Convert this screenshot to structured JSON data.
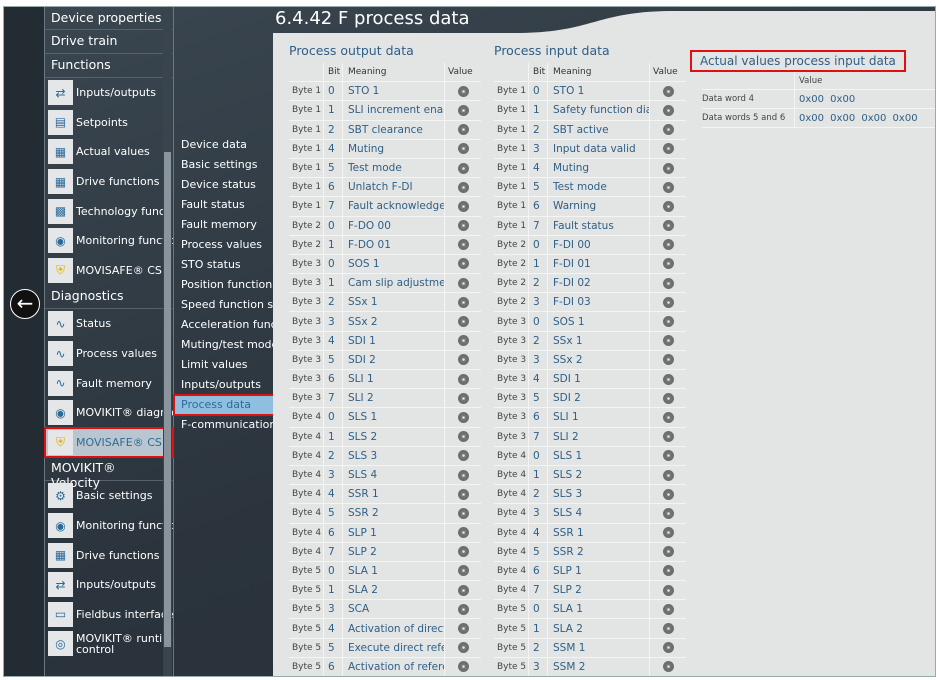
{
  "title": "6.4.42 F process data",
  "sidebar": {
    "sections": [
      {
        "label": "Device properties",
        "items": []
      },
      {
        "label": "Drive train",
        "items": []
      },
      {
        "label": "Functions",
        "items": [
          {
            "label": "Inputs/outputs",
            "icon": "io-icon"
          },
          {
            "label": "Setpoints",
            "icon": "setpoints-icon"
          },
          {
            "label": "Actual values",
            "icon": "actual-values-icon"
          },
          {
            "label": "Drive functions",
            "icon": "drive-functions-icon"
          },
          {
            "label": "Technology functi",
            "icon": "technology-icon"
          },
          {
            "label": "Monitoring functio",
            "icon": "eye-icon"
          },
          {
            "label": "MOVISAFE® CS..",
            "icon": "shield-icon"
          }
        ]
      },
      {
        "label": "Diagnostics",
        "items": [
          {
            "label": "Status",
            "icon": "pulse-icon"
          },
          {
            "label": "Process values",
            "icon": "process-values-icon"
          },
          {
            "label": "Fault memory",
            "icon": "fault-memory-icon"
          },
          {
            "label": "MOVIKIT® diagno",
            "icon": "eye-icon"
          },
          {
            "label": "MOVISAFE® CS..",
            "icon": "shield-icon",
            "selected": true
          }
        ]
      },
      {
        "label": "MOVIKIT® Velocity",
        "items": [
          {
            "label": "Basic settings",
            "icon": "gear-icon"
          },
          {
            "label": "Monitoring functio",
            "icon": "eye-icon"
          },
          {
            "label": "Drive functions",
            "icon": "drive-functions-icon"
          },
          {
            "label": "Inputs/outputs",
            "icon": "io-icon"
          },
          {
            "label": "Fieldbus interface",
            "icon": "fieldbus-icon"
          },
          {
            "label": "MOVIKIT® runtim control",
            "icon": "runtime-icon"
          }
        ]
      }
    ]
  },
  "nav2": [
    "Device data",
    "Basic settings",
    "Device status",
    "Fault status",
    "Fault memory",
    "Process values",
    "STO status",
    "Position function s",
    "Speed function sta",
    "Acceleration functi",
    "Muting/test mode",
    "Limit values",
    "Inputs/outputs",
    "Process data",
    "F-communication"
  ],
  "nav2_selected": "Process data",
  "output": {
    "title": "Process output data",
    "headers": [
      "",
      "Bit",
      "Meaning",
      "Value"
    ],
    "rows": [
      [
        "Byte 1",
        "0",
        "STO 1"
      ],
      [
        "Byte 1",
        "1",
        "SLI increment enab"
      ],
      [
        "Byte 1",
        "2",
        "SBT clearance"
      ],
      [
        "Byte 1",
        "4",
        "Muting"
      ],
      [
        "Byte 1",
        "5",
        "Test mode"
      ],
      [
        "Byte 1",
        "6",
        "Unlatch F-DI"
      ],
      [
        "Byte 1",
        "7",
        "Fault acknowledge"
      ],
      [
        "Byte 2",
        "0",
        "F-DO 00"
      ],
      [
        "Byte 2",
        "1",
        "F-DO 01"
      ],
      [
        "Byte 3",
        "0",
        "SOS 1"
      ],
      [
        "Byte 3",
        "1",
        "Cam slip adjustmen"
      ],
      [
        "Byte 3",
        "2",
        "SSx 1"
      ],
      [
        "Byte 3",
        "3",
        "SSx 2"
      ],
      [
        "Byte 3",
        "4",
        "SDI 1"
      ],
      [
        "Byte 3",
        "5",
        "SDI 2"
      ],
      [
        "Byte 3",
        "6",
        "SLI 1"
      ],
      [
        "Byte 3",
        "7",
        "SLI 2"
      ],
      [
        "Byte 4",
        "0",
        "SLS 1"
      ],
      [
        "Byte 4",
        "1",
        "SLS 2"
      ],
      [
        "Byte 4",
        "2",
        "SLS 3"
      ],
      [
        "Byte 4",
        "3",
        "SLS 4"
      ],
      [
        "Byte 4",
        "4",
        "SSR 1"
      ],
      [
        "Byte 4",
        "5",
        "SSR 2"
      ],
      [
        "Byte 4",
        "6",
        "SLP 1"
      ],
      [
        "Byte 4",
        "7",
        "SLP 2"
      ],
      [
        "Byte 5",
        "0",
        "SLA 1"
      ],
      [
        "Byte 5",
        "1",
        "SLA 2"
      ],
      [
        "Byte 5",
        "3",
        "SCA"
      ],
      [
        "Byte 5",
        "4",
        "Activation of direct"
      ],
      [
        "Byte 5",
        "5",
        "Execute direct refe"
      ],
      [
        "Byte 5",
        "6",
        "Activation of refere"
      ]
    ]
  },
  "input": {
    "title": "Process input data",
    "headers": [
      "",
      "Bit",
      "Meaning",
      "Value"
    ],
    "rows": [
      [
        "Byte 1",
        "0",
        "STO 1"
      ],
      [
        "Byte 1",
        "1",
        "Safety function dia"
      ],
      [
        "Byte 1",
        "2",
        "SBT active"
      ],
      [
        "Byte 1",
        "3",
        "Input data valid"
      ],
      [
        "Byte 1",
        "4",
        "Muting"
      ],
      [
        "Byte 1",
        "5",
        "Test mode"
      ],
      [
        "Byte 1",
        "6",
        "Warning"
      ],
      [
        "Byte 1",
        "7",
        "Fault status"
      ],
      [
        "Byte 2",
        "0",
        "F-DI 00"
      ],
      [
        "Byte 2",
        "1",
        "F-DI 01"
      ],
      [
        "Byte 2",
        "2",
        "F-DI 02"
      ],
      [
        "Byte 2",
        "3",
        "F-DI 03"
      ],
      [
        "Byte 3",
        "0",
        "SOS 1"
      ],
      [
        "Byte 3",
        "2",
        "SSx 1"
      ],
      [
        "Byte 3",
        "3",
        "SSx 2"
      ],
      [
        "Byte 3",
        "4",
        "SDI 1"
      ],
      [
        "Byte 3",
        "5",
        "SDI 2"
      ],
      [
        "Byte 3",
        "6",
        "SLI 1"
      ],
      [
        "Byte 3",
        "7",
        "SLI 2"
      ],
      [
        "Byte 4",
        "0",
        "SLS 1"
      ],
      [
        "Byte 4",
        "1",
        "SLS 2"
      ],
      [
        "Byte 4",
        "2",
        "SLS 3"
      ],
      [
        "Byte 4",
        "3",
        "SLS 4"
      ],
      [
        "Byte 4",
        "4",
        "SSR 1"
      ],
      [
        "Byte 4",
        "5",
        "SSR 2"
      ],
      [
        "Byte 4",
        "6",
        "SLP 1"
      ],
      [
        "Byte 4",
        "7",
        "SLP 2"
      ],
      [
        "Byte 5",
        "0",
        "SLA 1"
      ],
      [
        "Byte 5",
        "1",
        "SLA 2"
      ],
      [
        "Byte 5",
        "2",
        "SSM 1"
      ],
      [
        "Byte 5",
        "3",
        "SSM 2"
      ]
    ]
  },
  "actual": {
    "title": "Actual values process input data",
    "header": "Value",
    "rows": [
      {
        "label": "Data word 4",
        "value": "0x00 0x00"
      },
      {
        "label": "Data words 5 and 6",
        "value": "0x00 0x00 0x00 0x00"
      }
    ]
  },
  "colors": {
    "accent": "#2f5f86",
    "highlight": "#e01010",
    "selected_nav": "#8fbfe0"
  }
}
